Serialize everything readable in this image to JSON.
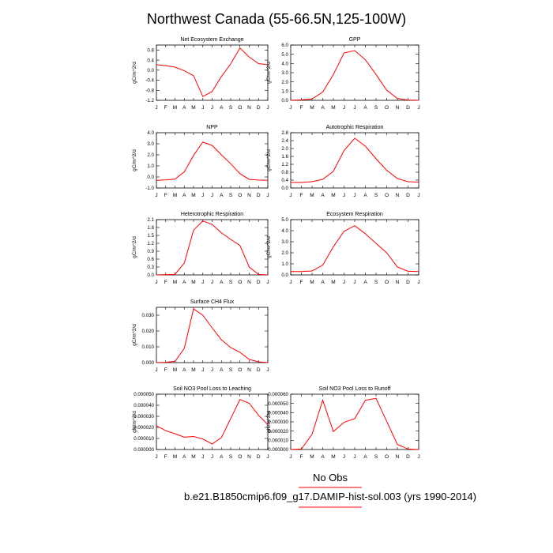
{
  "page": {
    "title": "Northwest Canada (55-66.5N,125-100W)",
    "legend_line1": "No Obs",
    "legend_line2": "b.e21.B1850cmip6.f09_g17.DAMIP-hist-sol.003 (yrs 1990-2014)",
    "line_color": "#ff0000"
  },
  "chart_data": [
    {
      "type": "line",
      "title": "Net Ecosystem Exchange",
      "ylabel": "gC/m^2/d",
      "categories": [
        "J",
        "F",
        "M",
        "A",
        "M",
        "J",
        "J",
        "A",
        "S",
        "O",
        "N",
        "D",
        "J"
      ],
      "values": [
        0.22,
        0.18,
        0.12,
        -0.02,
        -0.22,
        -1.05,
        -0.85,
        -0.25,
        0.25,
        0.88,
        0.52,
        0.26,
        0.22
      ],
      "ylim": [
        -1.2,
        1.0
      ],
      "yticks": [
        "-1.2",
        "-0.8",
        "-0.4",
        "0.0",
        "0.4",
        "0.8"
      ]
    },
    {
      "type": "line",
      "title": "GPP",
      "ylabel": "gC/m^2/d",
      "categories": [
        "J",
        "F",
        "M",
        "A",
        "M",
        "J",
        "J",
        "A",
        "S",
        "O",
        "N",
        "D",
        "J"
      ],
      "values": [
        0.0,
        0.05,
        0.15,
        0.9,
        2.8,
        5.15,
        5.4,
        4.4,
        2.8,
        1.1,
        0.2,
        0.03,
        0.0
      ],
      "ylim": [
        0.0,
        6.0
      ],
      "yticks": [
        "0.0",
        "1.0",
        "2.0",
        "3.0",
        "4.0",
        "5.0",
        "6.0"
      ]
    },
    {
      "type": "line",
      "title": "NPP",
      "ylabel": "gC/m^2/d",
      "categories": [
        "J",
        "F",
        "M",
        "A",
        "M",
        "J",
        "J",
        "A",
        "S",
        "O",
        "N",
        "D",
        "J"
      ],
      "values": [
        -0.3,
        -0.27,
        -0.2,
        0.45,
        1.95,
        3.15,
        2.85,
        2.0,
        1.2,
        0.3,
        -0.22,
        -0.28,
        -0.3
      ],
      "ylim": [
        -1.0,
        4.0
      ],
      "yticks": [
        "-1.0",
        "0.0",
        "1.0",
        "2.0",
        "3.0",
        "4.0"
      ]
    },
    {
      "type": "line",
      "title": "Autotrophic Respiration",
      "ylabel": "gC/m^2/d",
      "categories": [
        "J",
        "F",
        "M",
        "A",
        "M",
        "J",
        "J",
        "A",
        "S",
        "O",
        "N",
        "D",
        "J"
      ],
      "values": [
        0.28,
        0.28,
        0.32,
        0.44,
        0.85,
        1.9,
        2.52,
        2.12,
        1.48,
        0.9,
        0.48,
        0.32,
        0.3
      ],
      "ylim": [
        0.0,
        2.8
      ],
      "yticks": [
        "0.0",
        "0.4",
        "0.8",
        "1.2",
        "1.6",
        "2.0",
        "2.4",
        "2.8"
      ]
    },
    {
      "type": "line",
      "title": "Heterotrophic Respiration",
      "ylabel": "gC/m^2/d",
      "categories": [
        "J",
        "F",
        "M",
        "A",
        "M",
        "J",
        "J",
        "A",
        "S",
        "O",
        "N",
        "D",
        "J"
      ],
      "values": [
        0.0,
        0.01,
        0.02,
        0.45,
        1.7,
        2.05,
        1.92,
        1.6,
        1.35,
        1.12,
        0.3,
        0.02,
        0.0
      ],
      "ylim": [
        0.0,
        2.1
      ],
      "yticks": [
        "0.0",
        "0.3",
        "0.6",
        "0.9",
        "1.2",
        "1.5",
        "1.8",
        "2.1"
      ]
    },
    {
      "type": "line",
      "title": "Ecosystem Respiration",
      "ylabel": "gC/m^2/d",
      "categories": [
        "J",
        "F",
        "M",
        "A",
        "M",
        "J",
        "J",
        "A",
        "S",
        "O",
        "N",
        "D",
        "J"
      ],
      "values": [
        0.3,
        0.3,
        0.36,
        0.88,
        2.55,
        3.95,
        4.45,
        3.72,
        2.85,
        2.0,
        0.72,
        0.33,
        0.3
      ],
      "ylim": [
        0.0,
        5.0
      ],
      "yticks": [
        "0.0",
        "1.0",
        "2.0",
        "3.0",
        "4.0",
        "5.0"
      ]
    },
    {
      "type": "line",
      "title": "Surface CH4 Flux",
      "ylabel": "gC/m^2/d",
      "categories": [
        "J",
        "F",
        "M",
        "A",
        "M",
        "J",
        "J",
        "A",
        "S",
        "O",
        "N",
        "D",
        "J"
      ],
      "values": [
        0.0,
        0.0002,
        0.0008,
        0.009,
        0.034,
        0.03,
        0.022,
        0.0145,
        0.0095,
        0.0065,
        0.002,
        0.0005,
        0.0
      ],
      "ylim": [
        0.0,
        0.035
      ],
      "yticks": [
        "0.000",
        "0.010",
        "0.020",
        "0.030"
      ]
    },
    {
      "type": "line",
      "title": "Soil NO3 Pool Loss to Leaching",
      "ylabel": "gN/m^2/d",
      "categories": [
        "J",
        "F",
        "M",
        "A",
        "M",
        "J",
        "J",
        "A",
        "S",
        "O",
        "N",
        "D",
        "J"
      ],
      "values": [
        2.15e-05,
        1.7e-05,
        1.43e-05,
        1.12e-05,
        1.18e-05,
        9.5e-06,
        5e-06,
        1.08e-05,
        2.8e-05,
        4.52e-05,
        4.18e-05,
        3.1e-05,
        2.25e-05
      ],
      "ylim": [
        0.0,
        5e-05
      ],
      "yticks": [
        "0.000000",
        "0.000010",
        "0.000020",
        "0.000030",
        "0.000040",
        "0.000050"
      ]
    },
    {
      "type": "line",
      "title": "Soil NO3 Pool Loss to Runoff",
      "ylabel": "gN/m^2/d",
      "categories": [
        "J",
        "F",
        "M",
        "A",
        "M",
        "J",
        "J",
        "A",
        "S",
        "O",
        "N",
        "D",
        "J"
      ],
      "values": [
        0.0,
        5e-07,
        1.65e-05,
        5.35e-05,
        1.95e-05,
        2.95e-05,
        3.35e-05,
        5.35e-05,
        5.55e-05,
        3.05e-05,
        5.5e-06,
        5e-07,
        0.0
      ],
      "ylim": [
        0.0,
        6e-05
      ],
      "yticks": [
        "0.000000",
        "0.000010",
        "0.000020",
        "0.000030",
        "0.000040",
        "0.000050",
        "0.000060"
      ]
    }
  ]
}
